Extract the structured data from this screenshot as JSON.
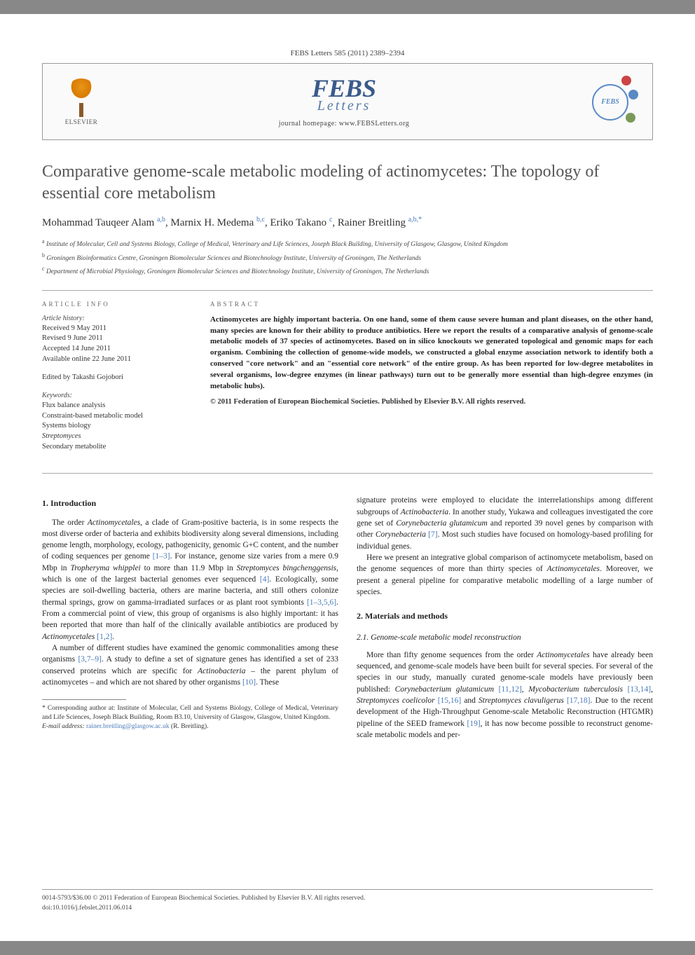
{
  "header_bar": "FEBS Letters 585 (2011) 2389–2394",
  "publisher": {
    "name": "ELSEVIER"
  },
  "journal_logo": {
    "main": "FEBS",
    "sub": "Letters",
    "badge": "FEBS"
  },
  "homepage": "journal homepage: www.FEBSLetters.org",
  "title": "Comparative genome-scale metabolic modeling of actinomycetes: The topology of essential core metabolism",
  "authors_html": "Mohammad Tauqeer Alam <sup>a,b</sup>, Marnix H. Medema <sup>b,c</sup>, Eriko Takano <sup>c</sup>, Rainer Breitling <sup>a,b,*</sup>",
  "affiliations": [
    {
      "sup": "a",
      "text": "Institute of Molecular, Cell and Systems Biology, College of Medical, Veterinary and Life Sciences, Joseph Black Building, University of Glasgow, Glasgow, United Kingdom"
    },
    {
      "sup": "b",
      "text": "Groningen Bioinformatics Centre, Groningen Biomolecular Sciences and Biotechnology Institute, University of Groningen, The Netherlands"
    },
    {
      "sup": "c",
      "text": "Department of Microbial Physiology, Groningen Biomolecular Sciences and Biotechnology Institute, University of Groningen, The Netherlands"
    }
  ],
  "article_info": {
    "head": "ARTICLE INFO",
    "history_label": "Article history:",
    "history": [
      "Received 9 May 2011",
      "Revised 9 June 2011",
      "Accepted 14 June 2011",
      "Available online 22 June 2011"
    ],
    "edited": "Edited by Takashi Gojobori",
    "keywords_label": "Keywords:",
    "keywords": [
      "Flux balance analysis",
      "Constraint-based metabolic model",
      "Systems biology",
      "Streptomyces",
      "Secondary metabolite"
    ]
  },
  "abstract": {
    "head": "ABSTRACT",
    "text": "Actinomycetes are highly important bacteria. On one hand, some of them cause severe human and plant diseases, on the other hand, many species are known for their ability to produce antibiotics. Here we report the results of a comparative analysis of genome-scale metabolic models of 37 species of actinomycetes. Based on in silico knockouts we generated topological and genomic maps for each organism. Combining the collection of genome-wide models, we constructed a global enzyme association network to identify both a conserved \"core network\" and an \"essential core network\" of the entire group. As has been reported for low-degree metabolites in several organisms, low-degree enzymes (in linear pathways) turn out to be generally more essential than high-degree enzymes (in metabolic hubs).",
    "copyright": "© 2011 Federation of European Biochemical Societies. Published by Elsevier B.V. All rights reserved."
  },
  "sections": {
    "intro_head": "1. Introduction",
    "intro_p1a": "The order ",
    "intro_p1_ital1": "Actinomycetales",
    "intro_p1b": ", a clade of Gram-positive bacteria, is in some respects the most diverse order of bacteria and exhibits biodiversity along several dimensions, including genome length, morphology, ecology, pathogenicity, genomic G+C content, and the number of coding sequences per genome ",
    "intro_p1_ref1": "[1–3]",
    "intro_p1c": ". For instance, genome size varies from a mere 0.9 Mbp in ",
    "intro_p1_ital2": "Tropheryma whipplei",
    "intro_p1d": " to more than 11.9 Mbp in ",
    "intro_p1_ital3": "Streptomyces bingchenggensis",
    "intro_p1e": ", which is one of the largest bacterial genomes ever sequenced ",
    "intro_p1_ref2": "[4]",
    "intro_p1f": ". Ecologically, some species are soil-dwelling bacteria, others are marine bacteria, and still others colonize thermal springs, grow on gamma-irradiated surfaces or as plant root symbionts ",
    "intro_p1_ref3": "[1–3,5,6]",
    "intro_p1g": ". From a commercial point of view, this group of organisms is also highly important: it has been reported that more than half of the clinically available antibiotics are produced by ",
    "intro_p1_ital4": "Actinomycetales",
    "intro_p1_ref4": " [1,2]",
    "intro_p1h": ".",
    "intro_p2a": "A number of different studies have examined the genomic commonalities among these organisms ",
    "intro_p2_ref1": "[3,7–9]",
    "intro_p2b": ". A study to define a set of signature genes has identified a set of 233 conserved proteins which are specific for ",
    "intro_p2_ital1": "Actinobacteria",
    "intro_p2c": " – the parent phylum of actinomycetes – and which are not shared by other organisms ",
    "intro_p2_ref2": "[10]",
    "intro_p2d": ". These",
    "col2_p1a": "signature proteins were employed to elucidate the interrelationships among different subgroups of ",
    "col2_p1_ital1": "Actinobacteria",
    "col2_p1b": ". In another study, Yukawa and colleagues investigated the core gene set of ",
    "col2_p1_ital2": "Corynebacteria glutamicum",
    "col2_p1c": " and reported 39 novel genes by comparison with other ",
    "col2_p1_ital3": "Corynebacteria",
    "col2_p1_ref1": " [7]",
    "col2_p1d": ". Most such studies have focused on homology-based profiling for individual genes.",
    "col2_p2a": "Here we present an integrative global comparison of actinomycete metabolism, based on the genome sequences of more than thirty species of ",
    "col2_p2_ital1": "Actinomycetales",
    "col2_p2b": ". Moreover, we present a general pipeline for comparative metabolic modelling of a large number of species.",
    "methods_head": "2. Materials and methods",
    "m21_head": "2.1. Genome-scale metabolic model reconstruction",
    "m21_p1a": "More than fifty genome sequences from the order ",
    "m21_ital1": "Actinomycetales",
    "m21_p1b": " have already been sequenced, and genome-scale models have been built for several species. For several of the species in our study, manually curated genome-scale models have previously been published: ",
    "m21_ital2": "Corynebacterium glutamicum",
    "m21_ref1": " [11,12]",
    "m21_p1c": ", ",
    "m21_ital3": "Mycobacterium tuberculosis",
    "m21_ref2": " [13,14]",
    "m21_p1d": ", ",
    "m21_ital4": "Streptomyces coelicolor",
    "m21_ref3": " [15,16]",
    "m21_p1e": " and ",
    "m21_ital5": "Streptomyces clavuligerus",
    "m21_ref4": " [17,18]",
    "m21_p1f": ". Due to the recent development of the High-Throughput Genome-scale Metabolic Reconstruction (HTGMR) pipeline of the SEED framework ",
    "m21_ref5": "[19]",
    "m21_p1g": ", it has now become possible to reconstruct genome-scale metabolic models and per-"
  },
  "footnote": {
    "corr": "* Corresponding author at: Institute of Molecular, Cell and Systems Biology, College of Medical, Veterinary and Life Sciences, Joseph Black Building, Room B3.10, University of Glasgow, Glasgow, United Kingdom.",
    "email_label": "E-mail address:",
    "email": "rainer.breitling@glasgow.ac.uk",
    "email_suffix": " (R. Breitling)."
  },
  "footer": {
    "line1": "0014-5793/$36.00 © 2011 Federation of European Biochemical Societies. Published by Elsevier B.V. All rights reserved.",
    "line2": "doi:10.1016/j.febslet.2011.06.014"
  }
}
